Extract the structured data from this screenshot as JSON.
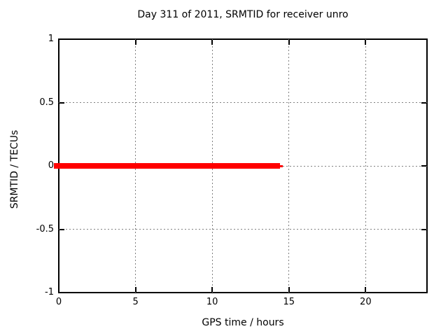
{
  "chart_data": {
    "type": "line",
    "title": "Day 311 of 2011, SRMTID for receiver unro",
    "xlabel": "GPS time / hours",
    "ylabel": "SRMTID / TECUs",
    "xlim": [
      0,
      24
    ],
    "ylim": [
      -1,
      1
    ],
    "xticks": [
      {
        "value": 0,
        "label": "0"
      },
      {
        "value": 5,
        "label": "5"
      },
      {
        "value": 10,
        "label": "10"
      },
      {
        "value": 15,
        "label": "15"
      },
      {
        "value": 20,
        "label": "20"
      }
    ],
    "yticks": [
      {
        "value": 1,
        "label": "1"
      },
      {
        "value": 0.5,
        "label": "0.5"
      },
      {
        "value": 0,
        "label": "0"
      },
      {
        "value": -0.5,
        "label": "-0.5"
      },
      {
        "value": -1,
        "label": "-1"
      }
    ],
    "grid": true,
    "legend_position": "none",
    "series": [
      {
        "name": "SRMTID",
        "color": "#ff0000",
        "style": "thick-line",
        "points": [
          [
            0,
            0
          ],
          [
            14.6,
            0
          ]
        ]
      }
    ],
    "colors": {
      "axis": "#000000",
      "grid": "#808080",
      "text": "#000000",
      "background": "#ffffff"
    }
  }
}
